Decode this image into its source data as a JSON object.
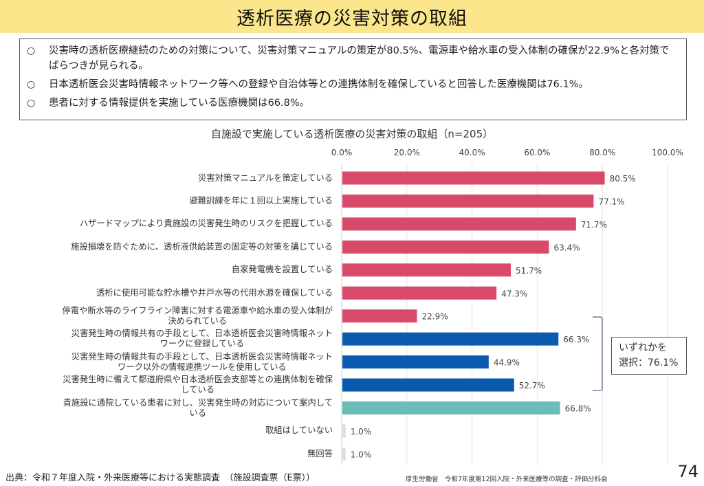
{
  "header": {
    "title": "透析医療の災害対策の取組"
  },
  "summary": {
    "items": [
      {
        "bullet": "○",
        "text": "災害時の透析医療継続のための対策について、災害対策マニュアルの策定が80.5%、電源車や給水車の受入体制の確保が22.9%と各対策でばらつきが見られる。"
      },
      {
        "bullet": "○",
        "text": "日本透析医会災害時情報ネットワーク等への登録や自治体等との連携体制を確保していると回答した医療機関は76.1%。"
      },
      {
        "bullet": "○",
        "text": "患者に対する情報提供を実施している医療機関は66.8%。"
      }
    ]
  },
  "chart_data": {
    "type": "bar",
    "orientation": "horizontal",
    "title": "自施設で実施している透析医療の災害対策の取組（n=205）",
    "xlabel": "",
    "ylabel": "",
    "xlim": [
      0,
      100
    ],
    "x_ticks": [
      "0.0%",
      "20.0%",
      "40.0%",
      "60.0%",
      "80.0%",
      "100.0%"
    ],
    "grid": true,
    "axis_position": "top",
    "categories": [
      [
        "災害対策マニュアルを策定している"
      ],
      [
        "避難訓練を年に１回以上実施している"
      ],
      [
        "ハザードマップにより貴施設の災害発生時のリスクを把握している"
      ],
      [
        "施設損壊を防ぐために、透析液供給装置の固定等の対策を講じている"
      ],
      [
        "自家発電機を設置している"
      ],
      [
        "透析に使用可能な貯水槽や井戸水等の代用水源を確保している"
      ],
      [
        "停電や断水等のライフライン障害に対する電源車や給水車の受入体制が",
        "決められている"
      ],
      [
        "災害発生時の情報共有の手段として、日本透析医会災害時情報ネット",
        "ワークに登録している"
      ],
      [
        "災害発生時の情報共有の手段として、日本透析医会災害時情報ネット",
        "ワーク以外の情報連携ツールを使用している"
      ],
      [
        "災害発生時に備えて都道府県や日本透析医会支部等との連携体制を確保",
        "している"
      ],
      [
        "貴施設に通院している患者に対し、災害発生時の対応について案内して",
        "いる"
      ],
      [
        "取組はしていない"
      ],
      [
        "無回答"
      ]
    ],
    "values": [
      80.5,
      77.1,
      71.7,
      63.4,
      51.7,
      47.3,
      22.9,
      66.3,
      44.9,
      52.7,
      66.8,
      1.0,
      1.0
    ],
    "value_labels": [
      "80.5%",
      "77.1%",
      "71.7%",
      "63.4%",
      "51.7%",
      "47.3%",
      "22.9%",
      "66.3%",
      "44.9%",
      "52.7%",
      "66.8%",
      "1.0%",
      "1.0%"
    ],
    "bar_groups": [
      "measures",
      "measures",
      "measures",
      "measures",
      "measures",
      "measures",
      "measures",
      "coordination",
      "coordination",
      "coordination",
      "patient-info",
      "none",
      "none"
    ],
    "colors": {
      "measures": "#d94a6a",
      "coordination": "#0a5aad",
      "patient-info": "#6cbdb8",
      "none": "#dedde8"
    },
    "annotation": {
      "bracket_rows": [
        7,
        9
      ],
      "lines": [
        "いずれかを",
        "選択：76.1%"
      ]
    }
  },
  "footer": {
    "source": "出典：令和７年度入院・外来医療等における実態調査　（施設調査票（E票））",
    "ministry": "厚生労働省　令和7年度第12回入院・外来医療等の調査・評価分科会",
    "page_number": "74"
  }
}
